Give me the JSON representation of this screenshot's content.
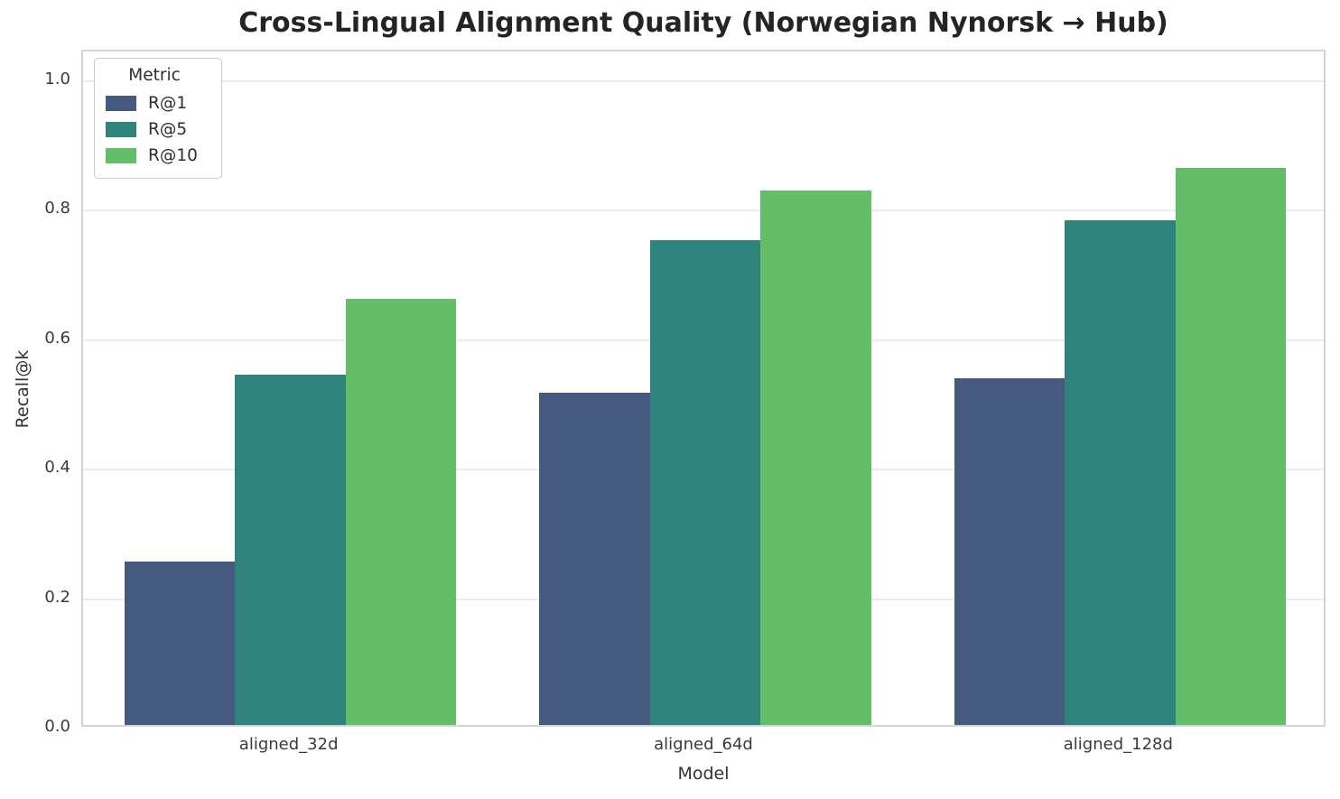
{
  "chart_data": {
    "type": "bar",
    "title": "Cross-Lingual Alignment Quality (Norwegian Nynorsk → Hub)",
    "xlabel": "Model",
    "ylabel": "Recall@k",
    "categories": [
      "aligned_32d",
      "aligned_64d",
      "aligned_128d"
    ],
    "series": [
      {
        "name": "R@1",
        "color": "#455a7e",
        "values": [
          0.253,
          0.514,
          0.535
        ]
      },
      {
        "name": "R@5",
        "color": "#2e837c",
        "values": [
          0.541,
          0.749,
          0.78
        ]
      },
      {
        "name": "R@10",
        "color": "#64be69",
        "values": [
          0.659,
          0.826,
          0.861
        ]
      }
    ],
    "legend": {
      "title": "Metric",
      "position": "upper left"
    },
    "yticks": [
      0.0,
      0.2,
      0.4,
      0.6,
      0.8,
      1.0
    ],
    "ytick_labels": [
      "0.0",
      "0.2",
      "0.4",
      "0.6",
      "0.8",
      "1.0"
    ],
    "ylim": [
      0,
      1.046
    ],
    "grid": "horizontal",
    "group_width_fraction": 0.8
  },
  "colors": {
    "gridline": "#ececec",
    "spine": "#d4d4d4",
    "title_text": "#242424",
    "tick_text": "#3a3a3a",
    "axis_label_text": "#333333",
    "legend_border": "#cccccc",
    "background": "#ffffff"
  }
}
